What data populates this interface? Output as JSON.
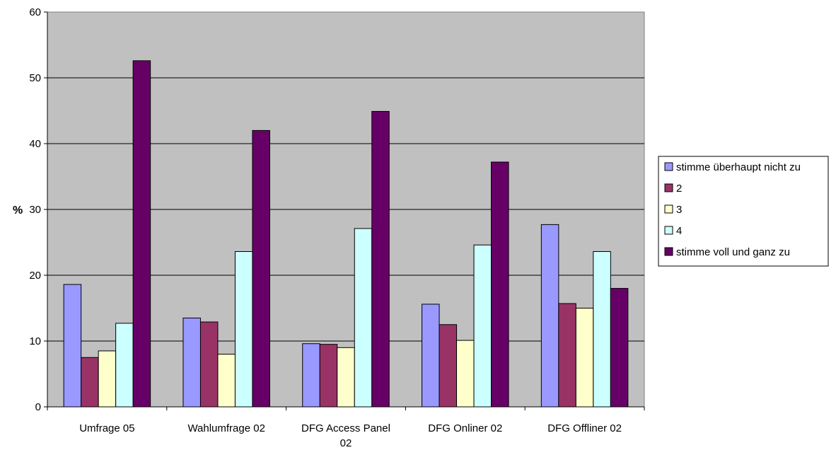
{
  "chart_data": {
    "type": "bar",
    "title": "",
    "xlabel": "",
    "ylabel": "%",
    "ylim": [
      0,
      60
    ],
    "yticks": [
      0,
      10,
      20,
      30,
      40,
      50,
      60
    ],
    "grid": true,
    "legend_position": "right",
    "categories": [
      [
        "Umfrage 05"
      ],
      [
        "Wahlumfrage 02"
      ],
      [
        "DFG Access Panel",
        "02"
      ],
      [
        "DFG Onliner 02"
      ],
      [
        "DFG Offliner 02"
      ]
    ],
    "series": [
      {
        "name": "stimme überhaupt nicht zu",
        "color": "#9999ff",
        "values": [
          18.6,
          13.5,
          9.6,
          15.6,
          27.7
        ]
      },
      {
        "name": "2",
        "color": "#993366",
        "values": [
          7.5,
          12.9,
          9.5,
          12.5,
          15.7
        ]
      },
      {
        "name": "3",
        "color": "#ffffcc",
        "values": [
          8.5,
          8.0,
          9.0,
          10.1,
          15.0
        ]
      },
      {
        "name": "4",
        "color": "#ccffff",
        "values": [
          12.7,
          23.6,
          27.1,
          24.6,
          23.6
        ]
      },
      {
        "name": "stimme voll und ganz zu",
        "color": "#660066",
        "values": [
          52.6,
          42.0,
          44.9,
          37.2,
          18.0
        ]
      }
    ],
    "plot_background": "#c0c0c0"
  }
}
